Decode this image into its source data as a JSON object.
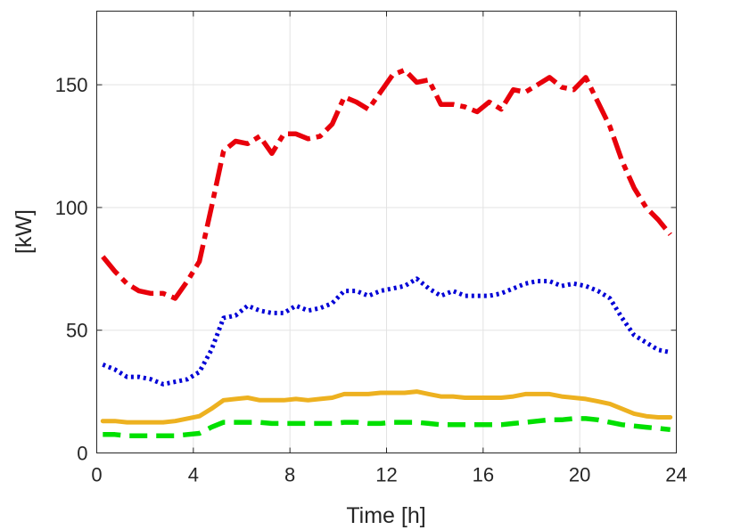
{
  "chart_data": {
    "type": "line",
    "title": "",
    "xlabel": "Time [h]",
    "ylabel": "[kW]",
    "xlim": [
      0,
      24
    ],
    "ylim": [
      0,
      180
    ],
    "xticks": [
      0,
      4,
      8,
      12,
      16,
      20,
      24
    ],
    "yticks": [
      0,
      50,
      100,
      150
    ],
    "grid": true,
    "series": [
      {
        "name": "red-dashdot",
        "color": "#e8000b",
        "style": "dashdot",
        "points": [
          [
            0.25,
            80
          ],
          [
            0.75,
            74
          ],
          [
            1.25,
            69
          ],
          [
            1.75,
            66
          ],
          [
            2.25,
            65
          ],
          [
            2.75,
            65
          ],
          [
            3.25,
            63
          ],
          [
            3.75,
            70
          ],
          [
            4.25,
            78
          ],
          [
            4.75,
            100
          ],
          [
            5.25,
            123
          ],
          [
            5.75,
            127
          ],
          [
            6.25,
            126
          ],
          [
            6.75,
            129
          ],
          [
            7.25,
            122
          ],
          [
            7.75,
            130
          ],
          [
            8.25,
            130
          ],
          [
            8.75,
            128
          ],
          [
            9.25,
            129
          ],
          [
            9.75,
            134
          ],
          [
            10.25,
            145
          ],
          [
            10.75,
            143
          ],
          [
            11.25,
            140
          ],
          [
            11.75,
            147
          ],
          [
            12.25,
            154
          ],
          [
            12.75,
            156
          ],
          [
            13.25,
            151
          ],
          [
            13.75,
            152
          ],
          [
            14.25,
            142
          ],
          [
            14.75,
            142
          ],
          [
            15.25,
            141
          ],
          [
            15.75,
            139
          ],
          [
            16.25,
            143
          ],
          [
            16.75,
            140
          ],
          [
            17.25,
            148
          ],
          [
            17.75,
            147
          ],
          [
            18.25,
            150
          ],
          [
            18.75,
            153
          ],
          [
            19.25,
            149
          ],
          [
            19.75,
            148
          ],
          [
            20.25,
            153
          ],
          [
            20.75,
            143
          ],
          [
            21.25,
            133
          ],
          [
            21.75,
            119
          ],
          [
            22.25,
            108
          ],
          [
            22.75,
            100
          ],
          [
            23.25,
            95
          ],
          [
            23.75,
            89
          ]
        ]
      },
      {
        "name": "blue-dotted",
        "color": "#0000d6",
        "style": "dotted",
        "points": [
          [
            0.25,
            36
          ],
          [
            0.75,
            34
          ],
          [
            1.25,
            31
          ],
          [
            1.75,
            31
          ],
          [
            2.25,
            30
          ],
          [
            2.75,
            28
          ],
          [
            3.25,
            29
          ],
          [
            3.75,
            30
          ],
          [
            4.25,
            33
          ],
          [
            4.75,
            42
          ],
          [
            5.25,
            55
          ],
          [
            5.75,
            56
          ],
          [
            6.25,
            60
          ],
          [
            6.75,
            58
          ],
          [
            7.25,
            57
          ],
          [
            7.75,
            57
          ],
          [
            8.25,
            60
          ],
          [
            8.75,
            58
          ],
          [
            9.25,
            59
          ],
          [
            9.75,
            61
          ],
          [
            10.25,
            66
          ],
          [
            10.75,
            66
          ],
          [
            11.25,
            64
          ],
          [
            11.75,
            66
          ],
          [
            12.25,
            67
          ],
          [
            12.75,
            68
          ],
          [
            13.25,
            71
          ],
          [
            13.75,
            67
          ],
          [
            14.25,
            64
          ],
          [
            14.75,
            66
          ],
          [
            15.25,
            64
          ],
          [
            15.75,
            64
          ],
          [
            16.25,
            64
          ],
          [
            16.75,
            65
          ],
          [
            17.25,
            67
          ],
          [
            17.75,
            69
          ],
          [
            18.25,
            70
          ],
          [
            18.75,
            70
          ],
          [
            19.25,
            68
          ],
          [
            19.75,
            69
          ],
          [
            20.25,
            68
          ],
          [
            20.75,
            66
          ],
          [
            21.25,
            63
          ],
          [
            21.75,
            55
          ],
          [
            22.25,
            48
          ],
          [
            22.75,
            45
          ],
          [
            23.25,
            42
          ],
          [
            23.75,
            41
          ]
        ]
      },
      {
        "name": "orange-solid",
        "color": "#edb120",
        "style": "solid",
        "points": [
          [
            0.25,
            13
          ],
          [
            0.75,
            13
          ],
          [
            1.25,
            12.5
          ],
          [
            1.75,
            12.5
          ],
          [
            2.25,
            12.5
          ],
          [
            2.75,
            12.5
          ],
          [
            3.25,
            13
          ],
          [
            3.75,
            14
          ],
          [
            4.25,
            15
          ],
          [
            4.75,
            18
          ],
          [
            5.25,
            21.5
          ],
          [
            5.75,
            22
          ],
          [
            6.25,
            22.5
          ],
          [
            6.75,
            21.5
          ],
          [
            7.25,
            21.5
          ],
          [
            7.75,
            21.5
          ],
          [
            8.25,
            22
          ],
          [
            8.75,
            21.5
          ],
          [
            9.25,
            22
          ],
          [
            9.75,
            22.5
          ],
          [
            10.25,
            24
          ],
          [
            10.75,
            24
          ],
          [
            11.25,
            24
          ],
          [
            11.75,
            24.5
          ],
          [
            12.25,
            24.5
          ],
          [
            12.75,
            24.5
          ],
          [
            13.25,
            25
          ],
          [
            13.75,
            24
          ],
          [
            14.25,
            23
          ],
          [
            14.75,
            23
          ],
          [
            15.25,
            22.5
          ],
          [
            15.75,
            22.5
          ],
          [
            16.25,
            22.5
          ],
          [
            16.75,
            22.5
          ],
          [
            17.25,
            23
          ],
          [
            17.75,
            24
          ],
          [
            18.25,
            24
          ],
          [
            18.75,
            24
          ],
          [
            19.25,
            23
          ],
          [
            19.75,
            22.5
          ],
          [
            20.25,
            22
          ],
          [
            20.75,
            21
          ],
          [
            21.25,
            20
          ],
          [
            21.75,
            18
          ],
          [
            22.25,
            16
          ],
          [
            22.75,
            15
          ],
          [
            23.25,
            14.5
          ],
          [
            23.75,
            14.5
          ]
        ]
      },
      {
        "name": "green-dashed",
        "color": "#00e000",
        "style": "dashed",
        "points": [
          [
            0.25,
            7.5
          ],
          [
            0.75,
            7.5
          ],
          [
            1.25,
            7
          ],
          [
            1.75,
            7
          ],
          [
            2.25,
            7
          ],
          [
            2.75,
            7
          ],
          [
            3.25,
            7
          ],
          [
            3.75,
            7.5
          ],
          [
            4.25,
            8
          ],
          [
            4.75,
            10.5
          ],
          [
            5.25,
            12.5
          ],
          [
            5.75,
            12.5
          ],
          [
            6.25,
            12.5
          ],
          [
            6.75,
            12.5
          ],
          [
            7.25,
            12
          ],
          [
            7.75,
            12
          ],
          [
            8.25,
            12
          ],
          [
            8.75,
            12
          ],
          [
            9.25,
            12
          ],
          [
            9.75,
            12
          ],
          [
            10.25,
            12.5
          ],
          [
            10.75,
            12.5
          ],
          [
            11.25,
            12
          ],
          [
            11.75,
            12
          ],
          [
            12.25,
            12.5
          ],
          [
            12.75,
            12.5
          ],
          [
            13.25,
            12.5
          ],
          [
            13.75,
            12
          ],
          [
            14.25,
            11.5
          ],
          [
            14.75,
            11.5
          ],
          [
            15.25,
            11.5
          ],
          [
            15.75,
            11.5
          ],
          [
            16.25,
            11.5
          ],
          [
            16.75,
            11.5
          ],
          [
            17.25,
            12
          ],
          [
            17.75,
            12.5
          ],
          [
            18.25,
            13
          ],
          [
            18.75,
            13.5
          ],
          [
            19.25,
            13.5
          ],
          [
            19.75,
            14
          ],
          [
            20.25,
            14
          ],
          [
            20.75,
            13.5
          ],
          [
            21.25,
            12.5
          ],
          [
            21.75,
            11.5
          ],
          [
            22.25,
            11
          ],
          [
            22.75,
            10.5
          ],
          [
            23.25,
            10
          ],
          [
            23.75,
            9.5
          ]
        ]
      }
    ]
  }
}
